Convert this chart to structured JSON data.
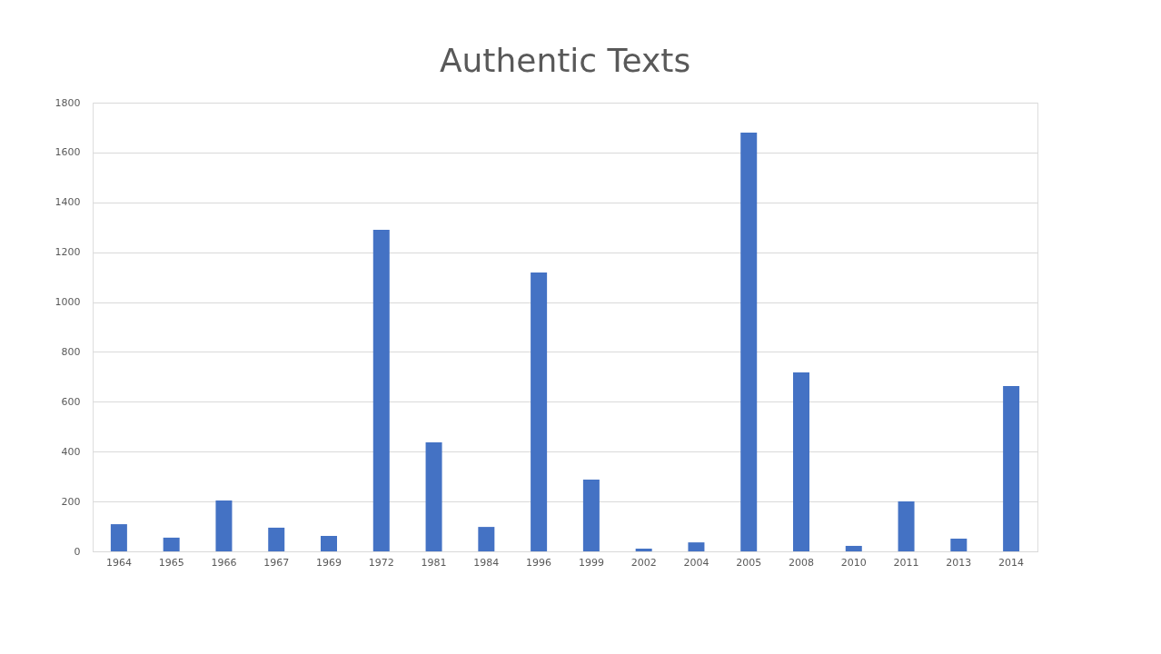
{
  "chart_data": {
    "type": "bar",
    "title": "Authentic Texts",
    "categories": [
      "1964",
      "1965",
      "1966",
      "1967",
      "1969",
      "1972",
      "1981",
      "1984",
      "1996",
      "1999",
      "2002",
      "2004",
      "2005",
      "2008",
      "2010",
      "2011",
      "2013",
      "2014"
    ],
    "values": [
      109,
      55,
      204,
      95,
      62,
      1290,
      437,
      98,
      1119,
      288,
      11,
      36,
      1680,
      718,
      22,
      200,
      51,
      663
    ],
    "color": "#4472c4",
    "ylim": [
      0,
      1800
    ],
    "yticks": [
      0,
      200,
      400,
      600,
      800,
      1000,
      1200,
      1400,
      1600,
      1800
    ],
    "grid": "y"
  }
}
